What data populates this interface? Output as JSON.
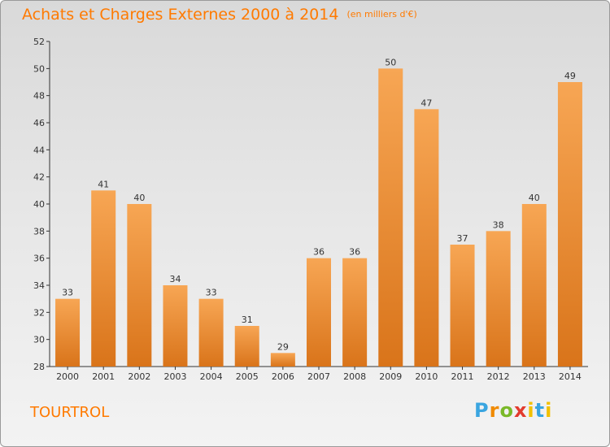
{
  "title": "Achats et Charges Externes 2000 à 2014",
  "subtitle": "(en milliers d'€)",
  "commune": "TOURTROL",
  "logo": {
    "p": "P",
    "r": "r",
    "o": "o",
    "x": "x",
    "i": "i",
    "t": "t",
    "i2": "i"
  },
  "colors": {
    "title": "#ff7a00",
    "bar_top": "#f7a654",
    "bar_bottom": "#d9741a",
    "axis": "#333333"
  },
  "chart_data": {
    "type": "bar",
    "title": "Achats et Charges Externes 2000 à 2014",
    "subtitle": "(en milliers d'€)",
    "categories": [
      "2000",
      "2001",
      "2002",
      "2003",
      "2004",
      "2005",
      "2006",
      "2007",
      "2008",
      "2009",
      "2010",
      "2011",
      "2012",
      "2013",
      "2014"
    ],
    "values": [
      33,
      41,
      40,
      34,
      33,
      31,
      29,
      36,
      36,
      50,
      47,
      37,
      38,
      40,
      49
    ],
    "ylim": [
      28,
      52
    ],
    "yticks": [
      28,
      30,
      32,
      34,
      36,
      38,
      40,
      42,
      44,
      46,
      48,
      50,
      52
    ],
    "xlabel": "",
    "ylabel": "",
    "grid": false,
    "data_labels": true
  }
}
